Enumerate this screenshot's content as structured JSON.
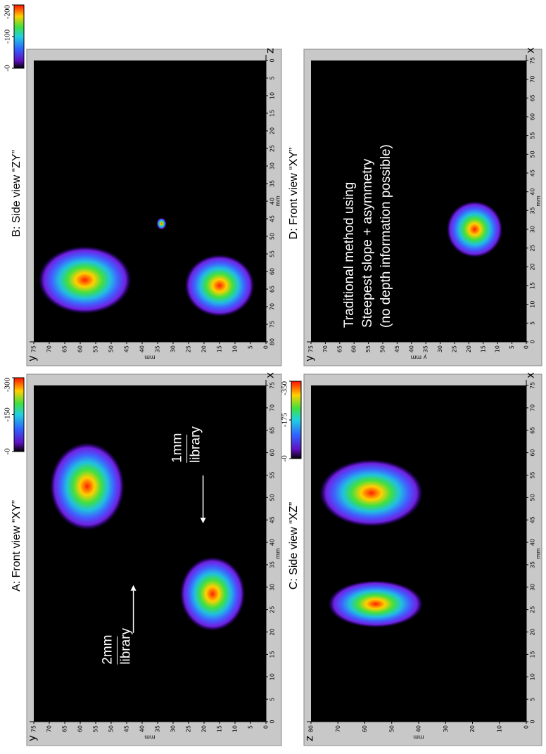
{
  "chart_data": [
    {
      "type": "heatmap",
      "title": "A: Front view “XY”",
      "xlabel": "x",
      "ylabel": "y",
      "xunit": "mm",
      "yunit": "mm",
      "xlim": [
        0,
        75
      ],
      "ylim": [
        0,
        75
      ],
      "xticks": [
        0,
        5,
        10,
        15,
        20,
        25,
        30,
        35,
        40,
        45,
        50,
        55,
        60,
        65,
        70,
        75
      ],
      "yticks": [
        0,
        5,
        10,
        15,
        20,
        25,
        30,
        35,
        40,
        45,
        50,
        55,
        60,
        65,
        70,
        75
      ],
      "colorbar_ticks": [
        -300,
        -150,
        {
          "value": 0,
          "label": "-0"
        }
      ],
      "annotations": [
        [
          "2mm",
          "library"
        ],
        [
          "1mm",
          "library"
        ]
      ]
    },
    {
      "type": "heatmap",
      "title": "B: Side view “ZY”",
      "xlabel": "z",
      "ylabel": "y",
      "xunit": "mm",
      "yunit": "mm",
      "xlim": [
        80,
        0
      ],
      "ylim": [
        0,
        75
      ],
      "xticks": [
        80,
        75,
        70,
        65,
        60,
        55,
        50,
        45,
        40,
        35,
        30,
        25,
        20,
        15,
        10,
        5,
        0
      ],
      "yticks": [
        0,
        5,
        10,
        15,
        20,
        25,
        30,
        35,
        40,
        45,
        50,
        55,
        60,
        65,
        70,
        75
      ],
      "colorbar_ticks": [
        -200,
        -100,
        {
          "value": 0,
          "label": "-0"
        }
      ]
    },
    {
      "type": "heatmap",
      "title": "C: Side view “XZ”",
      "xlabel": "x",
      "ylabel": "z",
      "xunit": "mm",
      "yunit": "mm",
      "xlim": [
        0,
        75
      ],
      "ylim": [
        0,
        80
      ],
      "xticks": [
        0,
        5,
        10,
        15,
        20,
        25,
        30,
        35,
        40,
        45,
        50,
        55,
        60,
        65,
        70,
        75
      ],
      "yticks": [
        0,
        10,
        20,
        30,
        40,
        50,
        60,
        70,
        80
      ],
      "colorbar_ticks": [
        -350,
        -175,
        {
          "value": 0,
          "label": "-0"
        }
      ]
    },
    {
      "type": "heatmap",
      "title": "D: Front view “XY”",
      "xlabel": "x",
      "ylabel": "y",
      "xunit": "mm",
      "yunit": "y mm",
      "xlim": [
        0,
        75
      ],
      "ylim": [
        0,
        75
      ],
      "xticks": [
        0,
        5,
        10,
        15,
        20,
        25,
        30,
        35,
        40,
        45,
        50,
        55,
        60,
        65,
        70,
        75
      ],
      "yticks": [
        0,
        5,
        10,
        15,
        20,
        25,
        30,
        35,
        40,
        45,
        50,
        55,
        60,
        65,
        70,
        75
      ],
      "annotations": [
        [
          "Traditional method using",
          "Steepest slope + asymmetry",
          "(no depth information possible)"
        ]
      ]
    }
  ]
}
